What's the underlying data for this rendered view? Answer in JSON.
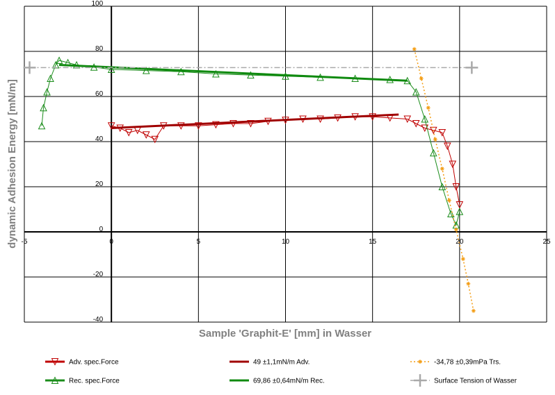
{
  "chart_data": {
    "type": "line",
    "x_label": "Sample 'Graphit-E' [mm] in Wasser",
    "y_label": "dynamic Adhesion Energy [mN/m]",
    "xlim": [
      -5,
      25
    ],
    "xticks": [
      -5,
      0,
      5,
      10,
      15,
      20,
      25
    ],
    "ylim": [
      -40,
      100
    ],
    "yticks": [
      -40,
      -20,
      0,
      20,
      40,
      60,
      80,
      100
    ],
    "grid": true,
    "legend": "bottom",
    "series": [
      {
        "name": "Adv. spec.Force",
        "color": "#c00000",
        "marker": "triangle-down",
        "line": "solid",
        "x": [
          0,
          0.5,
          1,
          1.5,
          2,
          2.5,
          3,
          4,
          5,
          6,
          7,
          8,
          9,
          10,
          11,
          12,
          13,
          14,
          15,
          16,
          17,
          17.5,
          18,
          18.5,
          19,
          19.3,
          19.6,
          19.8,
          20
        ],
        "values": [
          47,
          46,
          44,
          45,
          43,
          41,
          47,
          47,
          47,
          47.5,
          48,
          48,
          49,
          49.5,
          50,
          50,
          50.5,
          51,
          51,
          50.5,
          50,
          48,
          46,
          45,
          44,
          38,
          30,
          20,
          12
        ]
      },
      {
        "name": "Rec. spec.Force",
        "color": "#1a8c1a",
        "marker": "triangle-up",
        "line": "solid",
        "x": [
          -4,
          -3.9,
          -3.7,
          -3.5,
          -3.2,
          -3,
          -2.5,
          -2,
          -1,
          0,
          2,
          4,
          6,
          8,
          10,
          12,
          14,
          16,
          17,
          17.5,
          18,
          18.5,
          19,
          19.5,
          19.8,
          20
        ],
        "values": [
          47,
          55,
          62,
          68,
          74,
          76,
          75,
          74,
          73,
          72,
          71.5,
          71,
          70,
          69.5,
          69,
          68.5,
          68,
          67.5,
          67,
          62,
          50,
          35,
          20,
          8,
          3,
          9
        ]
      },
      {
        "name": "49 ±1,1mN/m Adv.",
        "color": "#a00000",
        "marker": "none",
        "line": "thick",
        "x": [
          0,
          16.5
        ],
        "values": [
          46,
          52
        ]
      },
      {
        "name": "69,86 ±0,64mN/m Rec.",
        "color": "#0f8a0f",
        "marker": "none",
        "line": "thick",
        "x": [
          -3,
          17
        ],
        "values": [
          74,
          67
        ]
      },
      {
        "name": "-34,78 ±0,39mPa Trs.",
        "color": "#f39c12",
        "marker": "star",
        "line": "dotted",
        "x": [
          17.4,
          17.8,
          18.2,
          18.6,
          19,
          19.4,
          19.8,
          20.2,
          20.5,
          20.8
        ],
        "values": [
          81,
          68,
          55,
          41,
          28,
          14,
          1,
          -12,
          -23,
          -35
        ]
      },
      {
        "name": "Surface Tension of Wasser",
        "color": "#a9a9a9",
        "marker": "plus",
        "line": "dashdot",
        "x": [
          -4.7,
          20.7
        ],
        "values": [
          72.8,
          72.8
        ]
      }
    ]
  }
}
